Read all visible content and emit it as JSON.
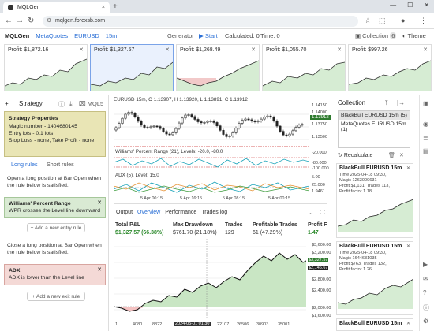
{
  "browser": {
    "tab_title": "MQLGen",
    "url": "mqlgen.forexsb.com",
    "new_tab": "+",
    "tab_close": "×"
  },
  "app": {
    "title": "MQLGen",
    "nav": [
      "MetaQuotes",
      "EURUSD",
      "15m"
    ],
    "generator": "Generator",
    "start": "▶ Start",
    "calculated": "Calculated: 0",
    "time": "Time: 0",
    "collection": "Collection",
    "collection_count": "6",
    "theme": "Theme"
  },
  "thumbnails": [
    {
      "profit": "Profit: $1,872.16"
    },
    {
      "profit": "Profit: $1,327.57"
    },
    {
      "profit": "Profit: $1,268.49"
    },
    {
      "profit": "Profit: $1,055.70"
    },
    {
      "profit": "Profit: $997.26"
    }
  ],
  "strategy": {
    "title": "Strategy",
    "mql": "MQL5",
    "props_title": "Strategy Properties",
    "props": [
      "Magic number - 1404680145",
      "Entry lots - 0.1 lots",
      "Stop Loss - none, Take Profit - none"
    ],
    "tab_long": "Long rules",
    "tab_short": "Short rules",
    "open_text": "Open a long position at Bar Open when the rule below is satisfied.",
    "entry_rule_title": "Williams' Percent Range",
    "entry_rule_text": "WPR crosses the Level line downward",
    "add_entry": "+ Add a new entry rule",
    "close_text": "Close a long position at Bar Open when the rule below is satisfied.",
    "exit_rule_title": "ADX",
    "exit_rule_text": "ADX is lower than the Level line",
    "add_exit": "+ Add a new exit rule"
  },
  "chart": {
    "header": "EURUSD 15m, O 1.13907, H 1.13920, L 1.13891, C 1.13912",
    "price_badge": "1.13912",
    "price_ticks": [
      "1.14150",
      "1.14000",
      "1.13750",
      "1.13500"
    ],
    "wpr_label": "Williams' Percent Range (21), Levels: -20.0, -80.0",
    "wpr_ticks": [
      "-20.000",
      "-80.000",
      "-100.000"
    ],
    "adx_label": "ADX (5), Level: 15.0",
    "adx_ticks": [
      "5.00",
      "25.000",
      "1.9461"
    ],
    "x_ticks": [
      "5 Apr 00:15",
      "5 Apr 16:15",
      "5 Apr 08:15",
      "5 Apr 00:15"
    ]
  },
  "output": {
    "tab_output": "Output",
    "tab_overview": "Overview",
    "tab_performance": "Performance",
    "tab_trades": "Trades log",
    "stats": [
      {
        "k": "Total P&L",
        "v": "$1,327.57 (66.38%)"
      },
      {
        "k": "Max Drawdown",
        "v": "$761.70 (21.18%)"
      },
      {
        "k": "Trades",
        "v": "129"
      },
      {
        "k": "Profitable Trades",
        "v": "61 (47.29%)"
      },
      {
        "k": "Profit F",
        "v": "1.47"
      }
    ],
    "equity_ticks": [
      "$3,600.00",
      "$3,200.00",
      "$2,800.00",
      "$2,400.00",
      "$2,000.00",
      "$1,600.00"
    ],
    "badge_top": "$3,327.57",
    "badge_mid": "$2,146.67",
    "x_ticks": [
      "1",
      "4080",
      "8822",
      "13300",
      "22107",
      "26506",
      "30903",
      "35001"
    ],
    "x_highlight": "2024-05-01 01:30"
  },
  "collection": {
    "title": "Collection",
    "items": [
      "BlackBull EURUSD 15m (5)",
      "MetaQuotes EURUSD 15m (1)"
    ],
    "recalculate": "Recalculate",
    "cards": [
      {
        "title": "BlackBull EURUSD 15m",
        "lines": [
          "Time 2025-04-18 09:30,",
          "Magic 1263009631",
          "Profit $1,131, Trades 113,",
          "Profit factor 1.18"
        ]
      },
      {
        "title": "BlackBull EURUSD 15m",
        "lines": [
          "Time 2025-04-18 09:30,",
          "Magic 1644631035",
          "Profit $763, Trades 132,",
          "Profit factor 1.26"
        ]
      },
      {
        "title": "BlackBull EURUSD 15m",
        "lines": []
      }
    ]
  }
}
